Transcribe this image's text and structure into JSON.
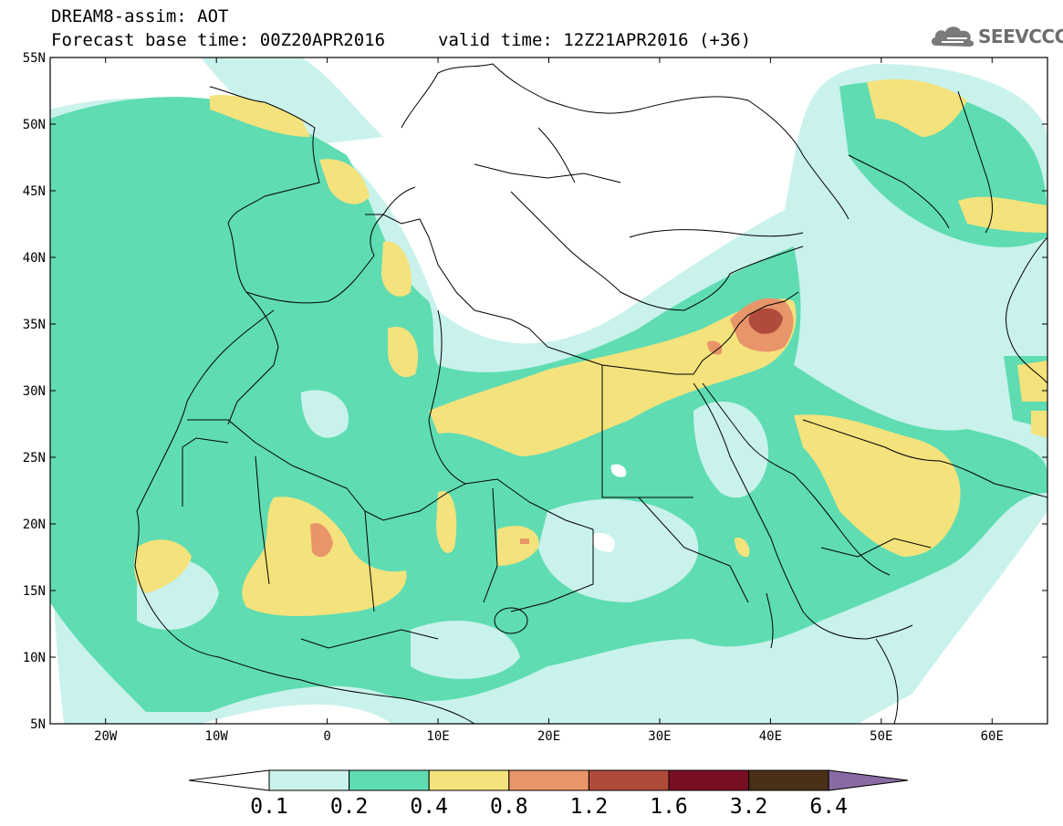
{
  "title": {
    "line1": "DREAM8-assim: AOT",
    "line2": "Forecast base time: 00Z20APR2016",
    "line3": "valid time: 12Z21APR2016 (+36)"
  },
  "logo": {
    "text": "SEEVCCC",
    "icon": "cloud-icon"
  },
  "map": {
    "type": "contour-map",
    "variable": "AOT",
    "lon_range": [
      -25,
      65
    ],
    "lat_range": [
      5,
      55
    ],
    "lat_ticks": [
      "55N",
      "50N",
      "45N",
      "40N",
      "35N",
      "30N",
      "25N",
      "20N",
      "15N",
      "10N",
      "5N"
    ],
    "lon_ticks": [
      "20W",
      "10W",
      "0",
      "10E",
      "20E",
      "30E",
      "40E",
      "50E",
      "60E"
    ],
    "level_colors": [
      "#c9f2ec",
      "#5fdcb2",
      "#f4e27c",
      "#e8956a",
      "#b04b3c",
      "#7a0f24",
      "#4a3019",
      "#8a6aa5"
    ],
    "max_feature": {
      "lon": 40.5,
      "lat": 35.5,
      "level": "1.2-1.6"
    }
  },
  "colorbar": {
    "levels": [
      "0.1",
      "0.2",
      "0.4",
      "0.8",
      "1.2",
      "1.6",
      "3.2",
      "6.4"
    ],
    "colors": [
      "#c9f2ec",
      "#5fdcb2",
      "#f4e27c",
      "#e8956a",
      "#b04b3c",
      "#7a0f24",
      "#4a3019"
    ],
    "below_color": "#ffffff",
    "above_color": "#8a6aa5"
  }
}
